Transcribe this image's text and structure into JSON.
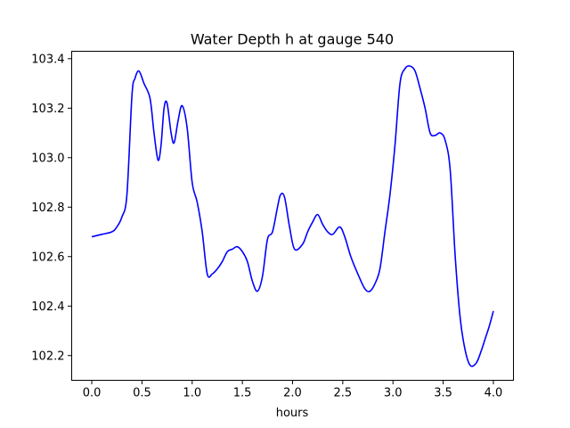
{
  "chart_data": {
    "type": "line",
    "title": "Water Depth h at gauge 540",
    "xlabel": "hours",
    "ylabel": "",
    "xlim": [
      -0.2,
      4.2
    ],
    "ylim": [
      102.1,
      103.43
    ],
    "xticks": [
      0.0,
      0.5,
      1.0,
      1.5,
      2.0,
      2.5,
      3.0,
      3.5,
      4.0
    ],
    "xtick_labels": [
      "0.0",
      "0.5",
      "1.0",
      "1.5",
      "2.0",
      "2.5",
      "3.0",
      "3.5",
      "4.0"
    ],
    "yticks": [
      102.2,
      102.4,
      102.6,
      102.8,
      103.0,
      103.2,
      103.4
    ],
    "ytick_labels": [
      "102.2",
      "102.4",
      "102.6",
      "102.8",
      "103.0",
      "103.2",
      "103.4"
    ],
    "grid": false,
    "series": [
      {
        "color": "#0000ff",
        "x": [
          0.0,
          0.1,
          0.2,
          0.25,
          0.3,
          0.35,
          0.4,
          0.43,
          0.47,
          0.52,
          0.58,
          0.62,
          0.66,
          0.69,
          0.72,
          0.75,
          0.79,
          0.82,
          0.86,
          0.9,
          0.95,
          1.0,
          1.05,
          1.1,
          1.15,
          1.2,
          1.25,
          1.3,
          1.35,
          1.4,
          1.45,
          1.5,
          1.55,
          1.6,
          1.65,
          1.7,
          1.75,
          1.8,
          1.85,
          1.88,
          1.92,
          1.97,
          2.02,
          2.1,
          2.15,
          2.2,
          2.25,
          2.3,
          2.35,
          2.4,
          2.47,
          2.52,
          2.58,
          2.65,
          2.72,
          2.77,
          2.82,
          2.87,
          2.92,
          2.97,
          3.02,
          3.07,
          3.12,
          3.17,
          3.22,
          3.27,
          3.32,
          3.37,
          3.42,
          3.47,
          3.52,
          3.57,
          3.62,
          3.67,
          3.72,
          3.77,
          3.83,
          3.88,
          3.92,
          3.96,
          4.0
        ],
        "y": [
          102.68,
          102.69,
          102.7,
          102.72,
          102.76,
          102.85,
          103.25,
          103.32,
          103.35,
          103.3,
          103.24,
          103.1,
          102.99,
          103.05,
          103.2,
          103.22,
          103.1,
          103.06,
          103.15,
          103.21,
          103.12,
          102.9,
          102.82,
          102.7,
          102.53,
          102.53,
          102.55,
          102.58,
          102.62,
          102.63,
          102.64,
          102.62,
          102.58,
          102.5,
          102.46,
          102.52,
          102.67,
          102.7,
          102.8,
          102.85,
          102.84,
          102.72,
          102.63,
          102.65,
          102.7,
          102.74,
          102.77,
          102.73,
          102.7,
          102.69,
          102.72,
          102.68,
          102.6,
          102.53,
          102.47,
          102.46,
          102.49,
          102.55,
          102.7,
          102.85,
          103.05,
          103.3,
          103.36,
          103.37,
          103.35,
          103.28,
          103.2,
          103.1,
          103.09,
          103.1,
          103.07,
          102.95,
          102.6,
          102.35,
          102.22,
          102.16,
          102.17,
          102.22,
          102.27,
          102.32,
          102.38
        ]
      }
    ]
  }
}
